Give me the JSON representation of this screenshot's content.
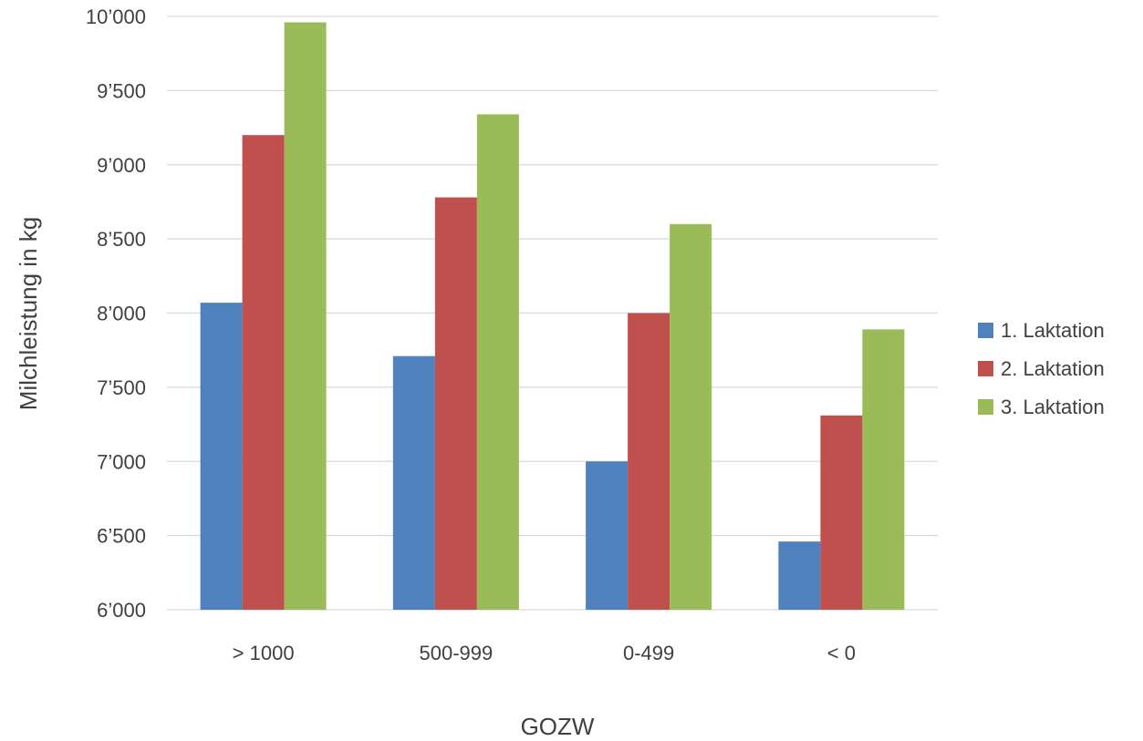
{
  "chart_data": {
    "type": "bar",
    "title": "",
    "xlabel": "GOZW",
    "ylabel": "Milchleistung in kg",
    "ylim": [
      6000,
      10000
    ],
    "yticks": [
      6000,
      6500,
      7000,
      7500,
      8000,
      8500,
      9000,
      9500,
      10000
    ],
    "ytick_labels": [
      "6’000",
      "6’500",
      "7’000",
      "7’500",
      "8’000",
      "8’500",
      "9’000",
      "9’500",
      "10’000"
    ],
    "categories": [
      "> 1000",
      "500-999",
      "0-499",
      "< 0"
    ],
    "series": [
      {
        "name": "1. Laktation",
        "color": "#4F81BD",
        "values": [
          8070,
          7710,
          7000,
          6460
        ]
      },
      {
        "name": "2. Laktation",
        "color": "#C0504D",
        "values": [
          9200,
          8780,
          8000,
          7310
        ]
      },
      {
        "name": "3. Laktation",
        "color": "#9BBB59",
        "values": [
          9960,
          9340,
          8600,
          7890
        ]
      }
    ],
    "grid": true,
    "legend_position": "right"
  }
}
